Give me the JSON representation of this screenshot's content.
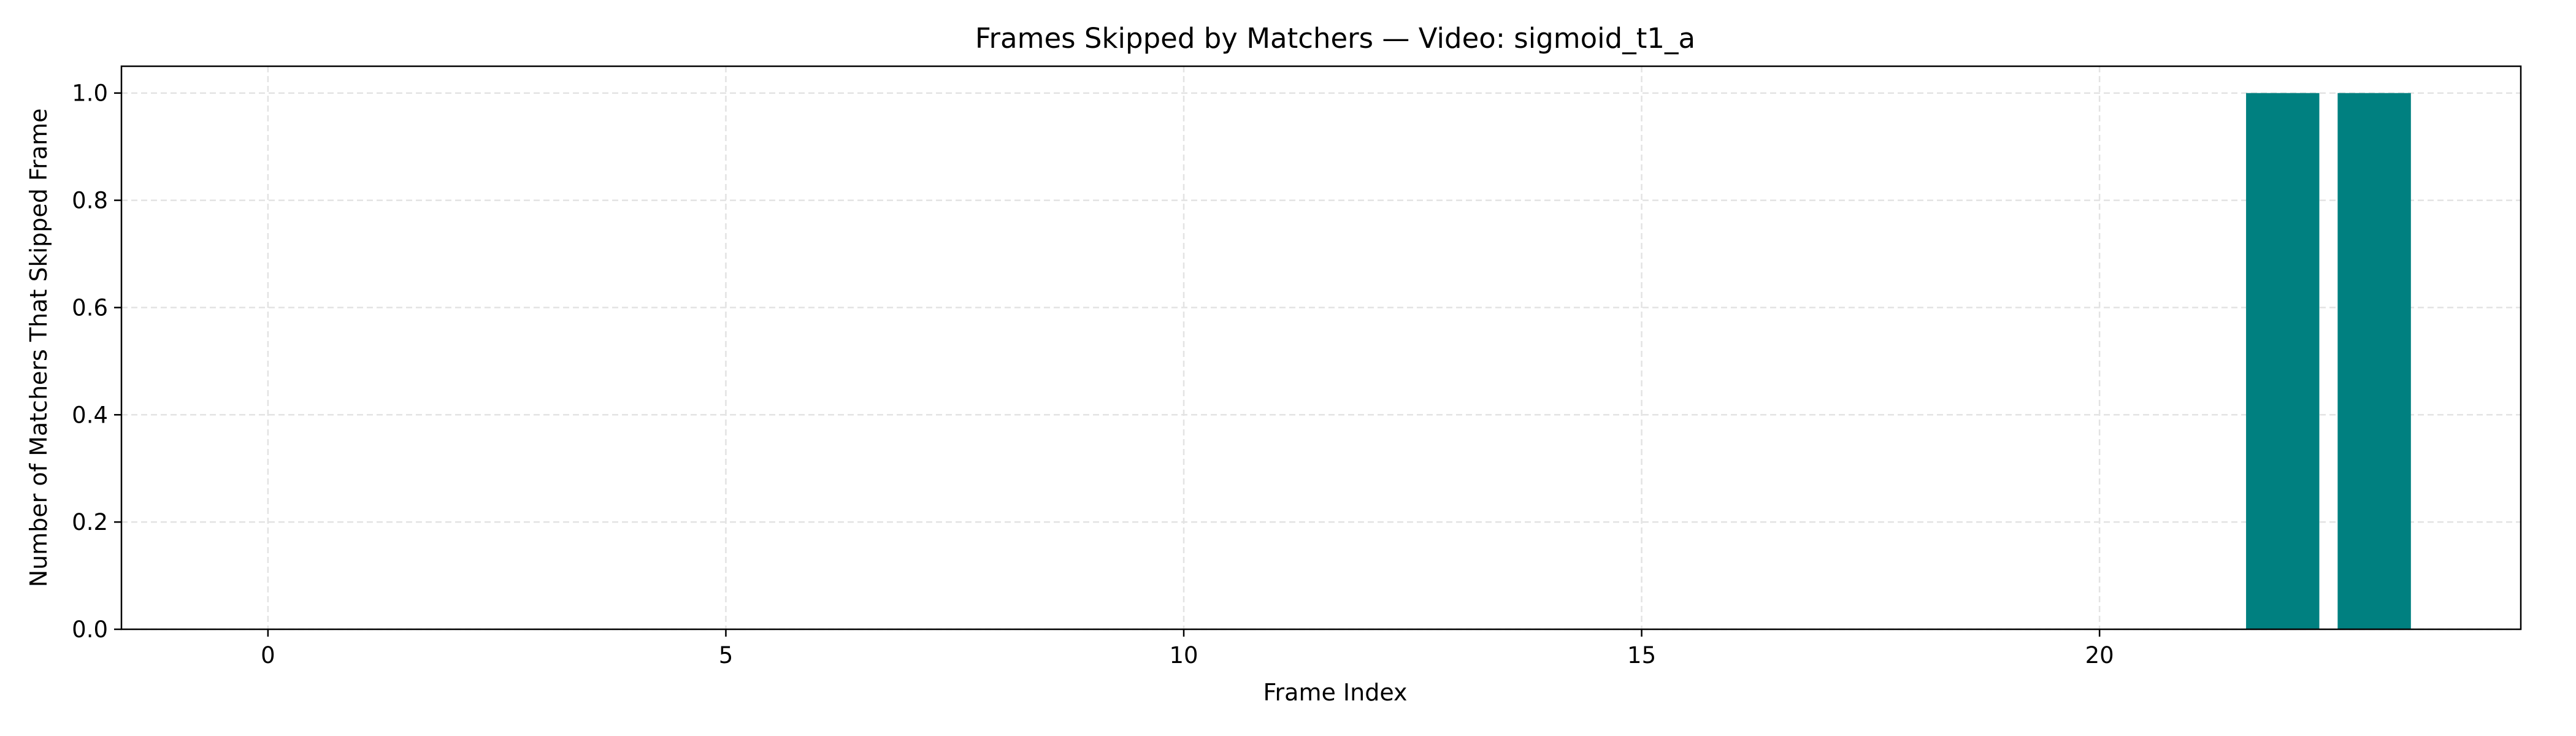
{
  "chart_data": {
    "type": "bar",
    "title": "Frames Skipped by Matchers — Video: sigmoid_t1_a",
    "xlabel": "Frame Index",
    "ylabel": "Number of Matchers That Skipped Frame",
    "x": [
      22,
      23
    ],
    "values": [
      1.0,
      1.0
    ],
    "bar_width": 0.8,
    "xlim": [
      -1.6,
      24.6
    ],
    "ylim": [
      0,
      1.05
    ],
    "xticks": [
      0,
      5,
      10,
      15,
      20
    ],
    "yticks": [
      0.0,
      0.2,
      0.4,
      0.6,
      0.8,
      1.0
    ],
    "xtick_labels": [
      "0",
      "5",
      "10",
      "15",
      "20"
    ],
    "ytick_labels": [
      "0.0",
      "0.2",
      "0.4",
      "0.6",
      "0.8",
      "1.0"
    ],
    "grid": true,
    "bar_color": "#008080"
  }
}
